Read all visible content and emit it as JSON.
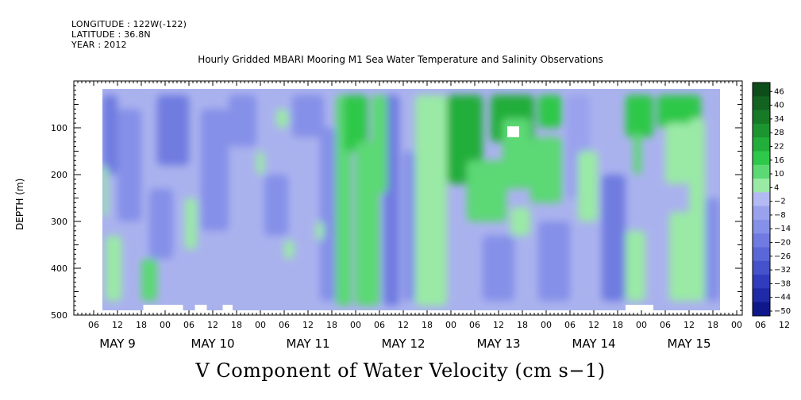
{
  "header": {
    "longitude": "LONGITUDE : 122W(-122)",
    "latitude": "LATITUDE : 36.8N",
    "year": "YEAR : 2012"
  },
  "chart_data": {
    "type": "heatmap",
    "title": "Hourly Gridded MBARI Mooring M1 Sea Water Temperature and Salinity Observations",
    "bottom_title": "V Component of Water Velocity (cm s−1)",
    "ylabel": "DEPTH (m)",
    "ylim": [
      500,
      0
    ],
    "y_ticks": [
      {
        "value": 100,
        "label": "100"
      },
      {
        "value": 200,
        "label": "200"
      },
      {
        "value": 300,
        "label": "300"
      },
      {
        "value": 400,
        "label": "400"
      },
      {
        "value": 500,
        "label": "500"
      }
    ],
    "xlim_hours": [
      0,
      168
    ],
    "x_hour_tick_labels": [
      "06",
      "12",
      "18",
      "00",
      "06",
      "12",
      "18",
      "00",
      "06",
      "12",
      "18",
      "00",
      "06",
      "12",
      "18",
      "00",
      "06",
      "12",
      "18",
      "00",
      "06",
      "12",
      "18",
      "00",
      "06",
      "12",
      "18",
      "00",
      "06",
      "12",
      "18",
      "00"
    ],
    "x_day_labels": [
      "MAY  9",
      "MAY 10",
      "MAY 11",
      "MAY 12",
      "MAY 13",
      "MAY 14",
      "MAY 15"
    ],
    "colorbar": {
      "min": -50,
      "max": 50,
      "labels": [
        "46",
        "40",
        "34",
        "28",
        "22",
        "16",
        "10",
        "4",
        "−2",
        "−8",
        "−14",
        "−20",
        "−26",
        "−32",
        "−38",
        "−44",
        "−50"
      ],
      "colors": [
        "#0d4d1a",
        "#11631f",
        "#167a26",
        "#1c942f",
        "#22ae3a",
        "#2ec84a",
        "#5cd874",
        "#9aeaa6",
        "#b3b9f2",
        "#9aa2ee",
        "#8590e8",
        "#6f7be0",
        "#5a67d8",
        "#4452cc",
        "#2f3cbd",
        "#1e2aa6",
        "#0f188a"
      ],
      "background_color": "#aab2ee"
    },
    "regions_positive": [
      {
        "t": [
          0,
          3
        ],
        "d": [
          30,
          480
        ],
        "v": 6
      },
      {
        "t": [
          4,
          5.5
        ],
        "d": [
          120,
          200
        ],
        "v": 6
      },
      {
        "t": [
          7.5,
          9.5
        ],
        "d": [
          180,
          290
        ],
        "v": 6
      },
      {
        "t": [
          9,
          13
        ],
        "d": [
          330,
          470
        ],
        "v": 8
      },
      {
        "t": [
          18,
          22
        ],
        "d": [
          380,
          470
        ],
        "v": 10
      },
      {
        "t": [
          29,
          32
        ],
        "d": [
          250,
          360
        ],
        "v": 6
      },
      {
        "t": [
          47,
          49
        ],
        "d": [
          150,
          200
        ],
        "v": 6
      },
      {
        "t": [
          52,
          55
        ],
        "d": [
          60,
          100
        ],
        "v": 6
      },
      {
        "t": [
          54,
          56.5
        ],
        "d": [
          340,
          380
        ],
        "v": 6
      },
      {
        "t": [
          62,
          64
        ],
        "d": [
          300,
          340
        ],
        "v": 6
      },
      {
        "t": [
          67,
          71
        ],
        "d": [
          30,
          480
        ],
        "v": 10
      },
      {
        "t": [
          69,
          75
        ],
        "d": [
          30,
          150
        ],
        "v": 16
      },
      {
        "t": [
          72,
          78
        ],
        "d": [
          130,
          480
        ],
        "v": 10
      },
      {
        "t": [
          76,
          80
        ],
        "d": [
          30,
          240
        ],
        "v": 14
      },
      {
        "t": [
          87,
          95
        ],
        "d": [
          30,
          480
        ],
        "v": 8
      },
      {
        "t": [
          95,
          104
        ],
        "d": [
          30,
          220
        ],
        "v": 22
      },
      {
        "t": [
          100,
          110
        ],
        "d": [
          170,
          300
        ],
        "v": 14
      },
      {
        "t": [
          106,
          117
        ],
        "d": [
          30,
          130
        ],
        "v": 24
      },
      {
        "t": [
          109,
          116
        ],
        "d": [
          80,
          230
        ],
        "v": 10
      },
      {
        "t": [
          111,
          116
        ],
        "d": [
          270,
          330
        ],
        "v": 6
      },
      {
        "t": [
          116,
          124
        ],
        "d": [
          120,
          260
        ],
        "v": 10
      },
      {
        "t": [
          118,
          124
        ],
        "d": [
          30,
          100
        ],
        "v": 16
      },
      {
        "t": [
          128,
          133
        ],
        "d": [
          150,
          300
        ],
        "v": 6
      },
      {
        "t": [
          131,
          133
        ],
        "d": [
          150,
          240
        ],
        "v": 6
      },
      {
        "t": [
          140,
          147
        ],
        "d": [
          30,
          120
        ],
        "v": 20
      },
      {
        "t": [
          142,
          144
        ],
        "d": [
          110,
          200
        ],
        "v": 10
      },
      {
        "t": [
          140,
          145
        ],
        "d": [
          320,
          470
        ],
        "v": 8
      },
      {
        "t": [
          148,
          159
        ],
        "d": [
          30,
          100
        ],
        "v": 20
      },
      {
        "t": [
          150,
          156
        ],
        "d": [
          90,
          220
        ],
        "v": 8
      },
      {
        "t": [
          151,
          160
        ],
        "d": [
          280,
          470
        ],
        "v": 8
      },
      {
        "t": [
          156,
          160
        ],
        "d": [
          80,
          300
        ],
        "v": 6
      }
    ],
    "regions_negative": [
      {
        "t": [
          3,
          12
        ],
        "d": [
          30,
          200
        ],
        "v": -16
      },
      {
        "t": [
          12,
          18
        ],
        "d": [
          60,
          300
        ],
        "v": -14
      },
      {
        "t": [
          22,
          30
        ],
        "d": [
          30,
          180
        ],
        "v": -16
      },
      {
        "t": [
          20,
          26
        ],
        "d": [
          230,
          380
        ],
        "v": -12
      },
      {
        "t": [
          33,
          40
        ],
        "d": [
          60,
          320
        ],
        "v": -14
      },
      {
        "t": [
          40,
          47
        ],
        "d": [
          30,
          140
        ],
        "v": -12
      },
      {
        "t": [
          49,
          55
        ],
        "d": [
          200,
          330
        ],
        "v": -10
      },
      {
        "t": [
          56,
          64
        ],
        "d": [
          30,
          120
        ],
        "v": -12
      },
      {
        "t": [
          63,
          67
        ],
        "d": [
          100,
          470
        ],
        "v": -10
      },
      {
        "t": [
          79,
          83
        ],
        "d": [
          30,
          480
        ],
        "v": -20
      },
      {
        "t": [
          84,
          87
        ],
        "d": [
          150,
          470
        ],
        "v": -12
      },
      {
        "t": [
          104,
          112
        ],
        "d": [
          330,
          470
        ],
        "v": -12
      },
      {
        "t": [
          118,
          126
        ],
        "d": [
          300,
          470
        ],
        "v": -10
      },
      {
        "t": [
          125,
          131
        ],
        "d": [
          30,
          250
        ],
        "v": -8
      },
      {
        "t": [
          134,
          140
        ],
        "d": [
          200,
          470
        ],
        "v": -16
      },
      {
        "t": [
          160,
          165
        ],
        "d": [
          250,
          470
        ],
        "v": -14
      }
    ],
    "missing_data": [
      {
        "t": [
          0,
          7.5
        ],
        "d": [
          475,
          500
        ]
      },
      {
        "t": [
          -2,
          0
        ],
        "d": [
          0,
          500
        ]
      },
      {
        "t": [
          110.2,
          113.2
        ],
        "d": [
          97,
          120
        ]
      },
      {
        "t": [
          18.5,
          28.5
        ],
        "d": [
          478,
          500
        ]
      },
      {
        "t": [
          31.5,
          34.5
        ],
        "d": [
          478,
          500
        ]
      },
      {
        "t": [
          38.5,
          41
        ],
        "d": [
          478,
          500
        ]
      },
      {
        "t": [
          140,
          147
        ],
        "d": [
          478,
          500
        ]
      },
      {
        "t": [
          165,
          168
        ],
        "d": [
          0,
          500
        ]
      }
    ]
  }
}
